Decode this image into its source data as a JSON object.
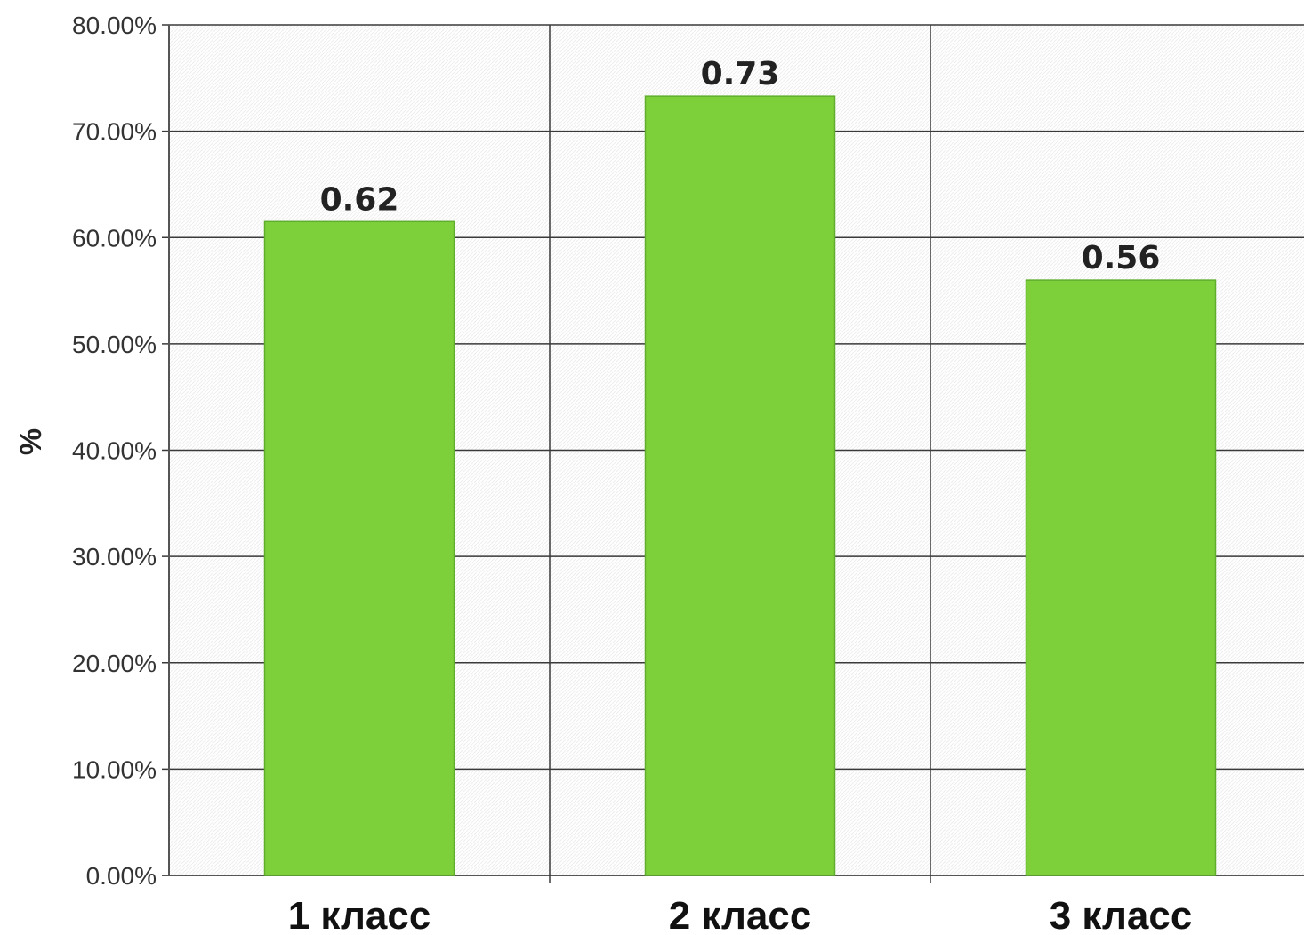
{
  "chart_data": {
    "type": "bar",
    "categories": [
      "1 класс",
      "2 класс",
      "3 класс"
    ],
    "values": [
      0.615,
      0.733,
      0.56
    ],
    "data_labels": [
      "0.62",
      "0.73",
      "0.56"
    ],
    "title": "",
    "xlabel": "",
    "ylabel": "%",
    "ylim": [
      0,
      0.8
    ],
    "yticks": [
      0,
      0.1,
      0.2,
      0.3,
      0.4,
      0.5,
      0.6,
      0.7,
      0.8
    ],
    "ytick_labels": [
      "0.00%",
      "10.00%",
      "20.00%",
      "30.00%",
      "40.00%",
      "50.00%",
      "60.00%",
      "70.00%",
      "80.00%"
    ],
    "grid": true,
    "legend": "none",
    "colors": {
      "bar": "#7ed03b",
      "background": "#ffffff",
      "gridline": "#3a3a3a"
    }
  }
}
